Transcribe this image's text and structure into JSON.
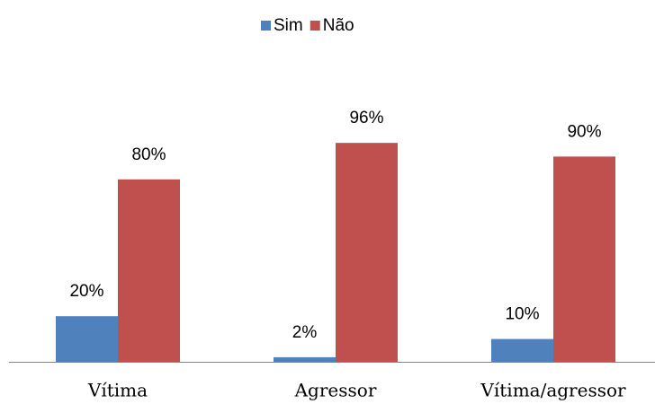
{
  "chart_data": {
    "type": "bar",
    "categories": [
      "Vítima",
      "Agressor",
      "Vítima/agressor"
    ],
    "series": [
      {
        "name": "Sim",
        "color": "#4f81bd",
        "values": [
          20,
          2,
          10
        ],
        "value_labels": [
          "20%",
          "2%",
          "10%"
        ]
      },
      {
        "name": "Não",
        "color": "#c0504d",
        "values": [
          80,
          96,
          90
        ],
        "value_labels": [
          "80%",
          "96%",
          "90%"
        ]
      }
    ],
    "legend": "top"
  }
}
